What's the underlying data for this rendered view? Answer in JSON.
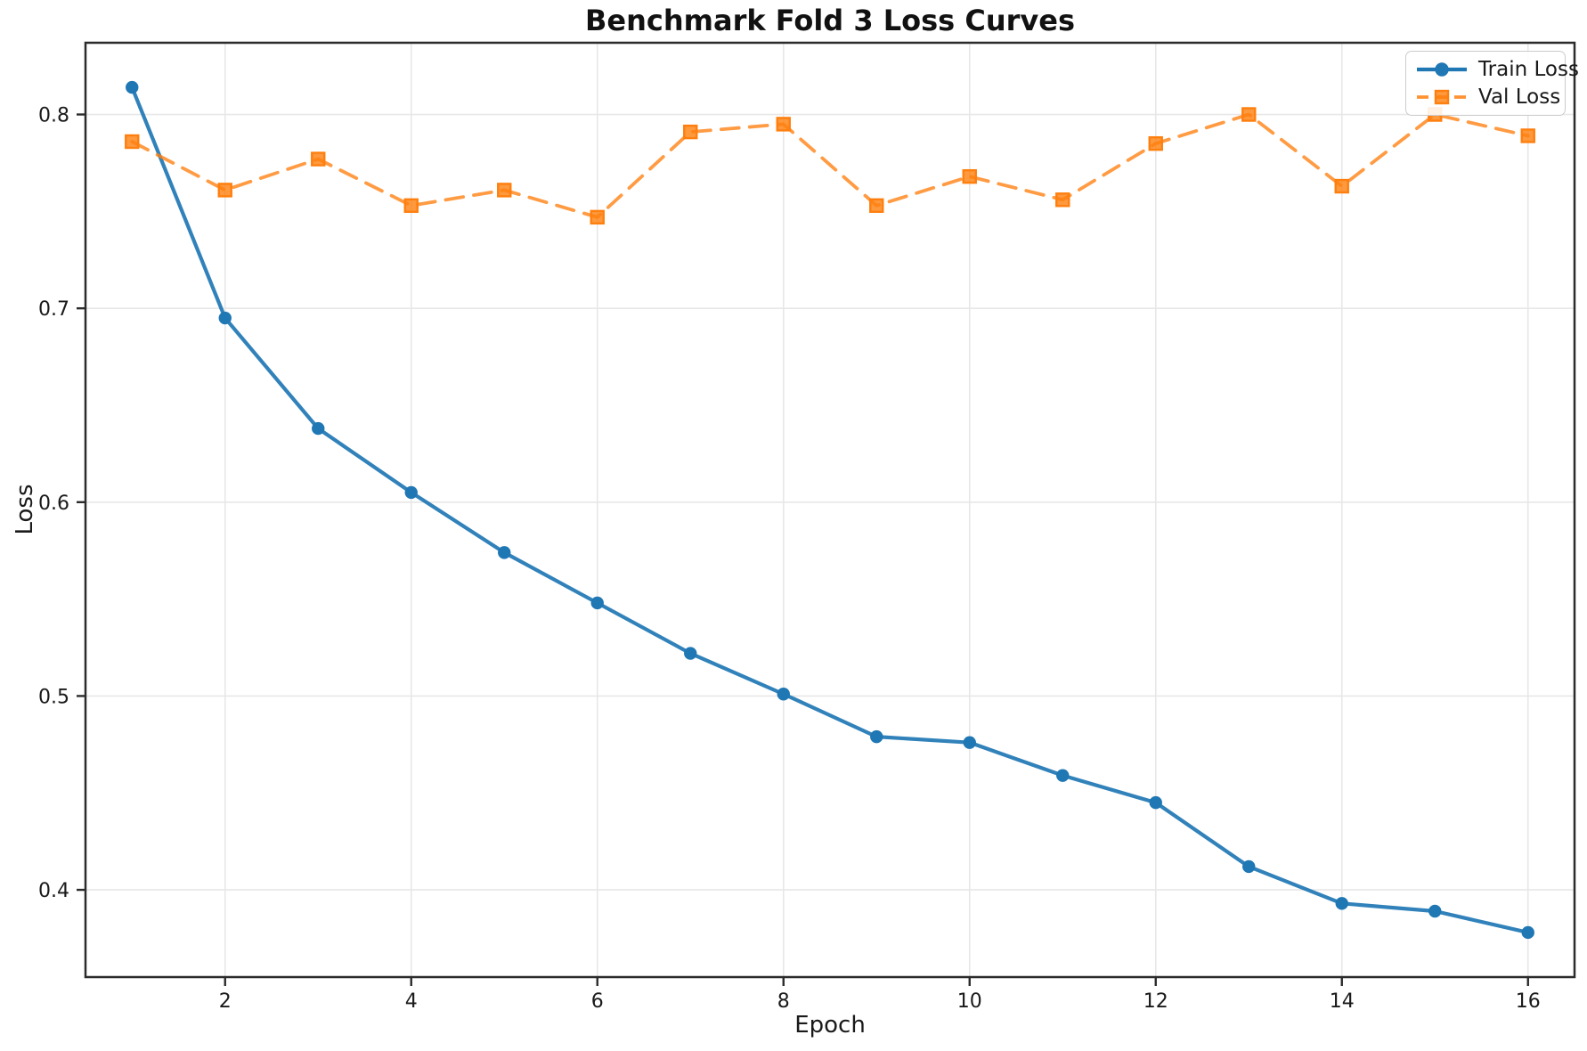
{
  "figure": {
    "background": "#ffffff",
    "text_color": "#1a1a1a",
    "grid_color": "#e7e7e7",
    "spine_color": "#2b2b2b"
  },
  "chart_data": {
    "type": "line",
    "title": "Benchmark Fold 3 Loss Curves",
    "xlabel": "Epoch",
    "ylabel": "Loss",
    "x": [
      1,
      2,
      3,
      4,
      5,
      6,
      7,
      8,
      9,
      10,
      11,
      12,
      13,
      14,
      15,
      16
    ],
    "series": [
      {
        "name": "Train Loss",
        "color": "#1f77b4",
        "linestyle": "solid",
        "marker": "circle",
        "values": [
          0.814,
          0.695,
          0.638,
          0.605,
          0.574,
          0.548,
          0.522,
          0.501,
          0.479,
          0.476,
          0.459,
          0.445,
          0.412,
          0.393,
          0.389,
          0.378
        ]
      },
      {
        "name": "Val Loss",
        "color": "#ff7f0e",
        "linestyle": "dashed",
        "marker": "square",
        "values": [
          0.786,
          0.761,
          0.777,
          0.753,
          0.761,
          0.747,
          0.791,
          0.795,
          0.753,
          0.768,
          0.756,
          0.785,
          0.8,
          0.763,
          0.8,
          0.789
        ]
      }
    ],
    "xticks": [
      2,
      4,
      6,
      8,
      10,
      12,
      14,
      16
    ],
    "yticks": [
      0.4,
      0.5,
      0.6,
      0.7,
      0.8
    ],
    "xlim": [
      0.5,
      16.5
    ],
    "ylim": [
      0.355,
      0.837
    ],
    "grid": true,
    "legend_position": "upper right"
  }
}
